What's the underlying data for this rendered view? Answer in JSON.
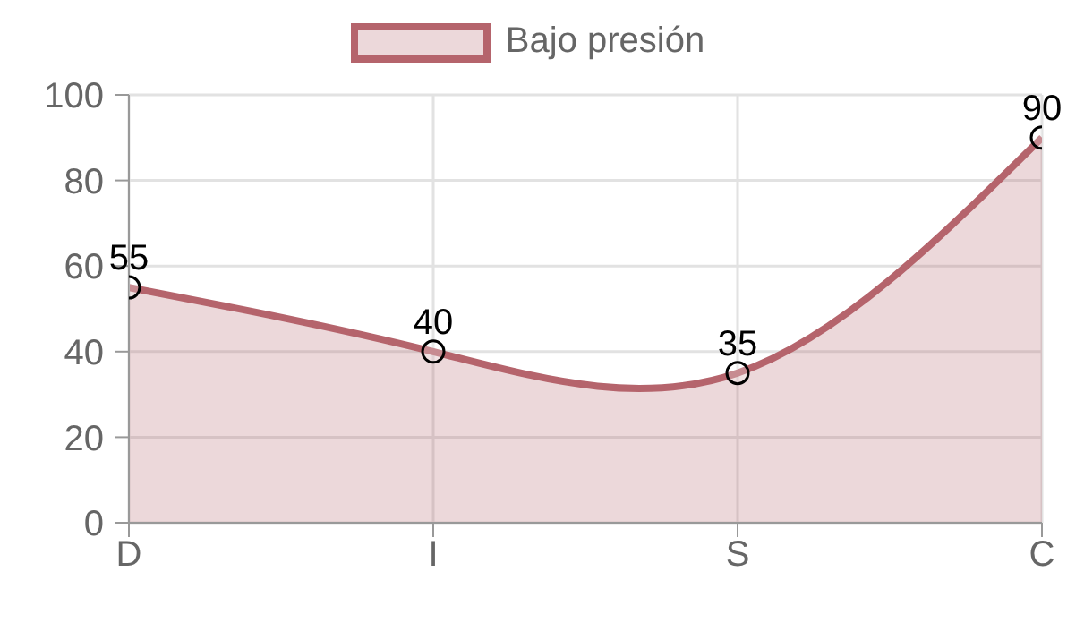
{
  "chart_data": {
    "type": "area",
    "categories": [
      "D",
      "I",
      "S",
      "C"
    ],
    "series": [
      {
        "name": "Bajo presión",
        "color": "#b5646c",
        "values": [
          55,
          40,
          35,
          90
        ]
      }
    ],
    "ylim": [
      0,
      100
    ],
    "yticks": [
      0,
      20,
      40,
      60,
      80,
      100
    ],
    "grid": true,
    "legend": "top",
    "marker": "circle",
    "data_labels": true
  }
}
